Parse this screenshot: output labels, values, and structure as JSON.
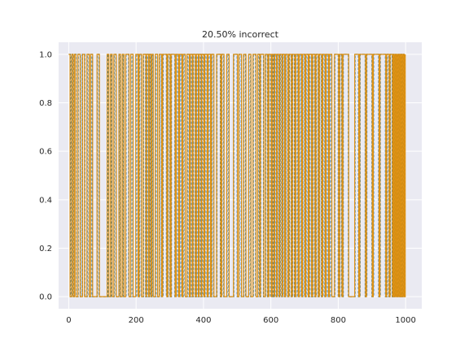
{
  "chart_data": {
    "type": "line",
    "title": "20.50% incorrect",
    "xlabel": "",
    "ylabel": "",
    "xlim": [
      -30,
      1048
    ],
    "ylim": [
      -0.05,
      1.05
    ],
    "x_ticks": [
      0,
      200,
      400,
      600,
      800,
      1000
    ],
    "x_tick_labels": [
      "0",
      "200",
      "400",
      "600",
      "800",
      "1000"
    ],
    "y_ticks": [
      0.0,
      0.2,
      0.4,
      0.6,
      0.8,
      1.0
    ],
    "y_tick_labels": [
      "0.0",
      "0.2",
      "0.4",
      "0.6",
      "0.8",
      "1.0"
    ],
    "grid": true,
    "background_color": "#eaeaf2",
    "grid_color": "#ffffff",
    "series": [
      {
        "style": "dashed",
        "color": "#1f77b4",
        "n_points": 1000,
        "transitions": [
          0,
          5,
          8,
          12,
          16,
          22,
          28,
          35,
          40,
          48,
          55,
          60,
          66,
          70,
          85,
          90,
          115,
          118,
          125,
          128,
          135,
          140,
          150,
          153,
          160,
          163,
          170,
          178,
          185,
          190,
          200,
          205,
          210,
          215,
          222,
          228,
          232,
          236,
          240,
          243,
          247,
          250,
          258,
          263,
          270,
          275,
          280,
          290,
          295,
          300,
          305,
          315,
          320,
          325,
          330,
          335,
          340,
          345,
          352,
          357,
          362,
          366,
          370,
          375,
          380,
          384,
          388,
          392,
          396,
          400,
          405,
          410,
          415,
          420,
          425,
          430,
          440,
          450,
          455,
          460,
          470,
          475,
          490,
          500,
          506,
          512,
          520,
          525,
          535,
          540,
          548,
          555,
          562,
          566,
          570,
          578,
          585,
          590,
          595,
          600,
          605,
          608,
          612,
          616,
          620,
          624,
          628,
          632,
          636,
          640,
          645,
          650,
          655,
          660,
          665,
          670,
          675,
          680,
          685,
          690,
          695,
          700,
          705,
          710,
          715,
          720,
          725,
          730,
          735,
          740,
          745,
          750,
          755,
          760,
          765,
          770,
          775,
          780,
          790,
          800,
          805,
          810,
          815,
          830,
          850,
          860,
          865,
          880,
          885,
          900,
          905,
          920,
          925,
          940,
          945,
          950,
          955,
          960,
          962,
          965,
          968,
          971,
          974,
          977,
          980,
          983,
          986,
          989,
          992,
          995,
          998
        ]
      },
      {
        "style": "solid",
        "color": "#dd8f0e",
        "n_points": 1000,
        "transitions": [
          0,
          4,
          9,
          13,
          17,
          21,
          27,
          34,
          41,
          47,
          54,
          61,
          65,
          71,
          84,
          91,
          114,
          119,
          124,
          129,
          134,
          141,
          149,
          154,
          159,
          164,
          169,
          179,
          184,
          191,
          199,
          206,
          209,
          216,
          221,
          229,
          231,
          237,
          239,
          244,
          246,
          251,
          257,
          264,
          269,
          276,
          279,
          291,
          294,
          301,
          304,
          316,
          319,
          326,
          329,
          336,
          339,
          346,
          351,
          358,
          361,
          367,
          369,
          376,
          379,
          385,
          387,
          393,
          395,
          401,
          404,
          411,
          414,
          421,
          424,
          431,
          439,
          451,
          454,
          461,
          469,
          476,
          489,
          501,
          505,
          513,
          519,
          526,
          534,
          541,
          547,
          556,
          561,
          567,
          569,
          579,
          584,
          591,
          594,
          601,
          604,
          609,
          611,
          617,
          619,
          625,
          627,
          633,
          635,
          641,
          644,
          651,
          654,
          661,
          664,
          671,
          674,
          681,
          684,
          691,
          694,
          701,
          704,
          711,
          714,
          721,
          724,
          731,
          734,
          741,
          744,
          751,
          754,
          761,
          764,
          771,
          774,
          781,
          789,
          801,
          804,
          811,
          814,
          831,
          849,
          861,
          864,
          881,
          884,
          901,
          904,
          921,
          924,
          941,
          944,
          951,
          954,
          961,
          963,
          966,
          969,
          972,
          975,
          978,
          981,
          984,
          987,
          990,
          993,
          996,
          999
        ]
      }
    ]
  }
}
